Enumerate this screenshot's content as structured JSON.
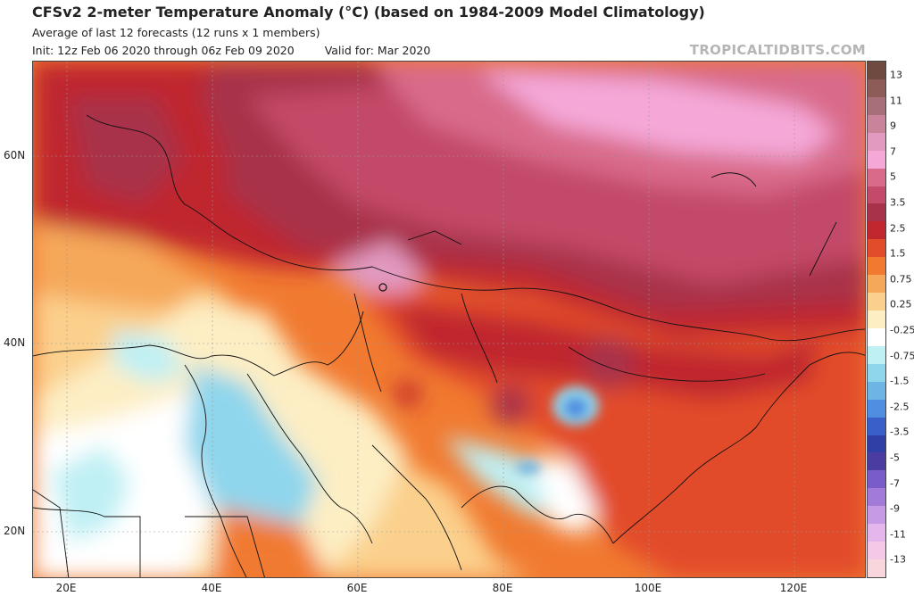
{
  "header": {
    "title": "CFSv2 2-meter Temperature Anomaly (°C) (based on 1984-2009 Model Climatology)",
    "subtitle": "Average of last 12 forecasts (12 runs x 1 members)",
    "init": "Init: 12z Feb 06 2020 through 06z Feb 09 2020",
    "valid": "Valid for: Mar 2020",
    "brand": "TROPICALTIDBITS.COM"
  },
  "map": {
    "lat_labels": [
      "60N",
      "40N",
      "20N"
    ],
    "lon_labels": [
      "20E",
      "40E",
      "60E",
      "80E",
      "100E",
      "120E"
    ],
    "extent": {
      "lon": [
        15,
        130
      ],
      "lat": [
        15,
        70
      ]
    }
  },
  "colorbar": {
    "labels": [
      "13",
      "11",
      "9",
      "7",
      "5",
      "3.5",
      "2.5",
      "1.5",
      "0.75",
      "0.25",
      "-0.25",
      "-0.75",
      "-1.5",
      "-2.5",
      "-3.5",
      "-5",
      "-7",
      "-9",
      "-11",
      "-13"
    ],
    "colors": [
      "#6e4a40",
      "#8e5c58",
      "#a66f79",
      "#c9849c",
      "#e29ac0",
      "#f5a8d8",
      "#d96a8a",
      "#c34a68",
      "#a8324a",
      "#c0282e",
      "#e24c2a",
      "#f17a30",
      "#f6a85a",
      "#fbd08c",
      "#fdeec4",
      "#ffffff",
      "#bff0f4",
      "#8fd6ec",
      "#6eb5e6",
      "#4f8ee0",
      "#3a5fc9",
      "#2f3fa6",
      "#4a3ca0",
      "#7a5cc9",
      "#a27ad8",
      "#c79ae6",
      "#e4b6ec",
      "#f4c8e6",
      "#f9d6dc"
    ]
  }
}
